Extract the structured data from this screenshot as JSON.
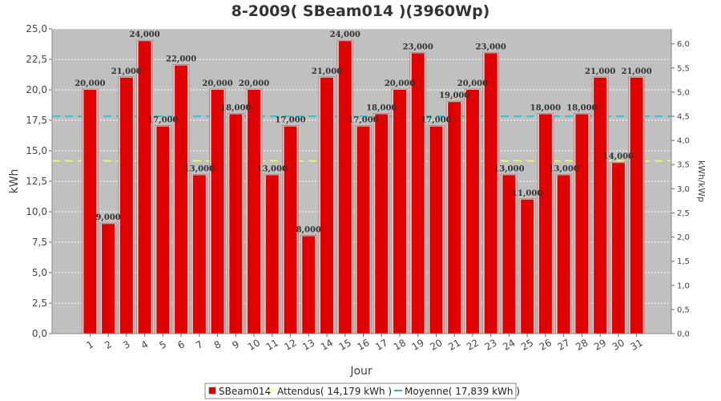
{
  "chart_data": {
    "type": "bar",
    "title": "8-2009( SBeam014 )(3960Wp)",
    "xlabel": "Jour",
    "ylabel": "kWh",
    "ylabel_right": "kWh/kWp",
    "ylim": [
      0,
      25
    ],
    "ylim_right": [
      0,
      6.31
    ],
    "yticks": [
      "0,0",
      "2,5",
      "5,0",
      "7,5",
      "10,0",
      "12,5",
      "15,0",
      "17,5",
      "20,0",
      "22,5",
      "25,0"
    ],
    "yticks_right": [
      "0,0",
      "0,5",
      "1,0",
      "1,5",
      "2,0",
      "2,5",
      "3,0",
      "3,5",
      "4,0",
      "4,5",
      "5,0",
      "5,5",
      "6,0"
    ],
    "categories": [
      "1",
      "2",
      "3",
      "4",
      "5",
      "6",
      "7",
      "8",
      "9",
      "10",
      "11",
      "12",
      "13",
      "14",
      "15",
      "16",
      "17",
      "18",
      "19",
      "20",
      "21",
      "22",
      "23",
      "24",
      "25",
      "26",
      "27",
      "28",
      "29",
      "30",
      "31"
    ],
    "series": [
      {
        "name": "SBeam014",
        "color": "#e00000",
        "values": [
          20,
          9,
          21,
          24,
          17,
          22,
          13,
          20,
          18,
          20,
          13,
          17,
          8,
          21,
          24,
          17,
          18,
          20,
          23,
          17,
          19,
          20,
          23,
          13,
          11,
          18,
          13,
          18,
          21,
          14,
          21
        ],
        "labels": [
          "20,000",
          "9,000",
          "21,000",
          "24,000",
          "17,000",
          "22,000",
          "13,000",
          "20,000",
          "18,000",
          "20,000",
          "13,000",
          "17,000",
          "8,000",
          "21,000",
          "24,000",
          "17,000",
          "18,000",
          "20,000",
          "23,000",
          "17,000",
          "19,000",
          "20,000",
          "23,000",
          "13,000",
          "11,000",
          "18,000",
          "13,000",
          "18,000",
          "21,000",
          "14,000",
          "21,000"
        ]
      }
    ],
    "reference_lines": [
      {
        "name": "Attendus",
        "value": 14.179,
        "color": "#ffff66"
      },
      {
        "name": "Moyenne",
        "value": 17.839,
        "color": "#22bbcc"
      }
    ],
    "legend": {
      "position": "bottom",
      "items": [
        "SBeam014",
        "Attendus( 14,179 kWh )",
        "Moyenne( 17,839 kWh )"
      ]
    },
    "grid": true
  }
}
